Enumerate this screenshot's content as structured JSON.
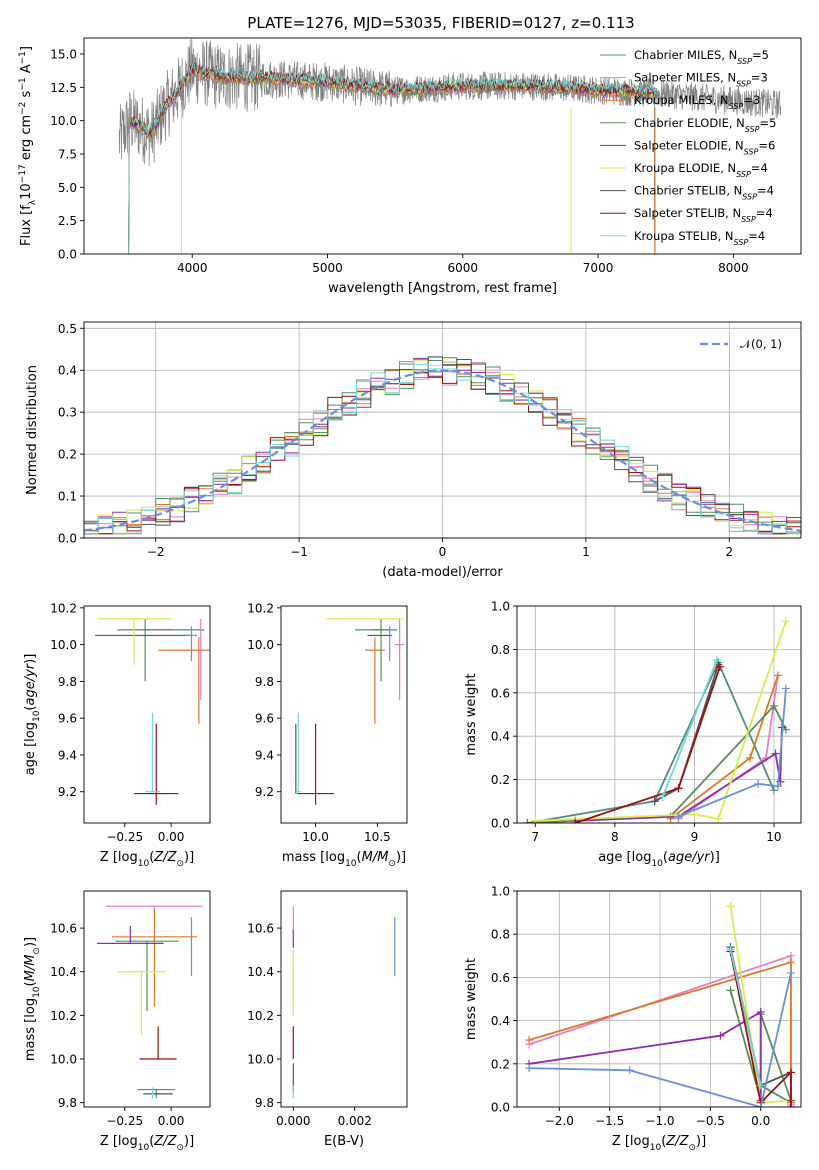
{
  "title": "PLATE=1276, MJD=53035, FIBERID=0127, z=0.113",
  "models": [
    {
      "name": "Chabrier MILES",
      "nssp": "5",
      "color": "#4d8f7a"
    },
    {
      "name": "Salpeter MILES",
      "nssp": "3",
      "color": "#e87fc0"
    },
    {
      "name": "Kroupa MILES",
      "nssp": "3",
      "color": "#e0782a"
    },
    {
      "name": "Chabrier ELODIE",
      "nssp": "5",
      "color": "#5a8a5a"
    },
    {
      "name": "Salpeter ELODIE",
      "nssp": "6",
      "color": "#8e2bb0"
    },
    {
      "name": "Kroupa ELODIE",
      "nssp": "4",
      "color": "#d8ec4a"
    },
    {
      "name": "Chabrier STELIB",
      "nssp": "4",
      "color": "#555555"
    },
    {
      "name": "Salpeter STELIB",
      "nssp": "4",
      "color": "#9b1010"
    },
    {
      "name": "Kroupa STELIB",
      "nssp": "4",
      "color": "#70d8d8"
    }
  ],
  "extra_color": "#6a8ee0",
  "chart_data": [
    {
      "id": "spectrum",
      "type": "line",
      "xlabel": "wavelength [Angstrom, rest frame]",
      "ylabel": "Flux [f_λ 10^-17 erg cm^-2 s^-1 A^-1]",
      "xlim": [
        3200,
        8500
      ],
      "ylim": [
        0,
        16.2
      ],
      "xticks": [
        4000,
        5000,
        6000,
        7000,
        8000
      ],
      "yticks": [
        0.0,
        2.5,
        5.0,
        7.5,
        10.0,
        12.5,
        15.0
      ],
      "observed_range": [
        3460,
        8350
      ],
      "model_range": [
        3530,
        7420
      ],
      "continuum_knots": [
        [
          3460,
          8.5
        ],
        [
          3540,
          10.0
        ],
        [
          3700,
          9.0
        ],
        [
          3800,
          11.0
        ],
        [
          3900,
          12.3
        ],
        [
          4000,
          13.8
        ],
        [
          4200,
          13.3
        ],
        [
          4500,
          13.2
        ],
        [
          4800,
          13.0
        ],
        [
          5000,
          12.9
        ],
        [
          5200,
          12.6
        ],
        [
          5500,
          12.3
        ],
        [
          6000,
          12.6
        ],
        [
          6500,
          12.6
        ],
        [
          7000,
          12.3
        ],
        [
          7500,
          12.0
        ],
        [
          8000,
          11.5
        ],
        [
          8350,
          11.2
        ]
      ],
      "legend_position": "right"
    },
    {
      "id": "residuals",
      "type": "histogram",
      "xlabel": "(data-model)/error",
      "ylabel": "Normed distribution",
      "xlim": [
        -2.5,
        2.5
      ],
      "ylim": [
        0,
        0.515
      ],
      "xticks": [
        -2,
        -1,
        0,
        1,
        2
      ],
      "yticks": [
        0.0,
        0.1,
        0.2,
        0.3,
        0.4,
        0.5
      ],
      "bin_width": 0.1,
      "reference_curve": {
        "label": "𝒩(0, 1)",
        "mean": 0,
        "sigma": 1
      },
      "legend_position": "top-right"
    },
    {
      "id": "age-vs-Z",
      "type": "scatter",
      "xlabel": "Z [log10(Z/Z⊙)]",
      "ylabel": "age [log10(age/yr)]",
      "xlim": [
        -0.47,
        0.21
      ],
      "ylim": [
        9.03,
        10.21
      ],
      "xticks": [
        -0.25,
        0.0
      ],
      "yticks": [
        9.2,
        9.4,
        9.6,
        9.8,
        10.0,
        10.2
      ],
      "points": [
        {
          "model": 0,
          "x": 0.0,
          "y": 10.08,
          "xerr": 0.18,
          "yerr": [
            0.0,
            0.0
          ]
        },
        {
          "model": 1,
          "x": 0.16,
          "y": 10.0,
          "xerr": 0.0,
          "yerr": [
            0.3,
            0.14
          ]
        },
        {
          "model": 2,
          "x": 0.15,
          "y": 9.97,
          "xerr": 0.22,
          "yerr": [
            0.4,
            0.07
          ]
        },
        {
          "model": 3,
          "x": -0.14,
          "y": 10.08,
          "xerr": 0.15,
          "yerr": [
            0.28,
            0.06
          ]
        },
        {
          "model": 4,
          "x": -0.15,
          "y": 10.05,
          "xerr": 0.26,
          "yerr": [
            0.0,
            0.0
          ]
        },
        {
          "model": 5,
          "x": -0.2,
          "y": 10.14,
          "xerr": 0.2,
          "yerr": [
            0.25,
            0.0
          ]
        },
        {
          "model": 6,
          "x": -0.06,
          "y": 9.19,
          "xerr": 0.05,
          "yerr": [
            0.0,
            0.0
          ]
        },
        {
          "model": 7,
          "x": -0.08,
          "y": 9.19,
          "xerr": 0.12,
          "yerr": [
            0.06,
            0.38
          ]
        },
        {
          "model": 8,
          "x": -0.1,
          "y": 9.2,
          "xerr": 0.04,
          "yerr": [
            0.0,
            0.43
          ]
        },
        {
          "extra": true,
          "x": 0.11,
          "y": 10.05,
          "xerr": 0.03,
          "yerr": [
            0.14,
            0.05
          ]
        }
      ]
    },
    {
      "id": "age-vs-mass",
      "type": "scatter",
      "xlabel": "mass [log10(M/M⊙)]",
      "ylabel": "",
      "xlim": [
        9.72,
        10.74
      ],
      "ylim": [
        9.03,
        10.21
      ],
      "xticks": [
        10.0,
        10.5
      ],
      "yticks": [
        9.2,
        9.4,
        9.6,
        9.8,
        10.0,
        10.2
      ],
      "points": [
        {
          "model": 0,
          "x": 10.49,
          "y": 10.08,
          "xerr": 0.17,
          "yerr": [
            0.0,
            0.0
          ]
        },
        {
          "model": 1,
          "x": 10.68,
          "y": 10.0,
          "xerr": 0.04,
          "yerr": [
            0.3,
            0.14
          ]
        },
        {
          "model": 2,
          "x": 10.48,
          "y": 9.97,
          "xerr": 0.08,
          "yerr": [
            0.4,
            0.07
          ]
        },
        {
          "model": 3,
          "x": 10.53,
          "y": 10.08,
          "xerr": 0.08,
          "yerr": [
            0.28,
            0.06
          ]
        },
        {
          "model": 4,
          "x": 10.52,
          "y": 10.05,
          "xerr": 0.1,
          "yerr": [
            0.0,
            0.0
          ]
        },
        {
          "model": 5,
          "x": 10.4,
          "y": 10.14,
          "xerr": 0.31,
          "yerr": [
            0.0,
            0.0
          ]
        },
        {
          "model": 6,
          "x": 9.84,
          "y": 9.19,
          "xerr": 0.0,
          "yerr": [
            0.0,
            0.38
          ]
        },
        {
          "model": 7,
          "x": 10.0,
          "y": 9.19,
          "xerr": 0.15,
          "yerr": [
            0.06,
            0.38
          ]
        },
        {
          "model": 8,
          "x": 9.86,
          "y": 9.2,
          "xerr": 0.02,
          "yerr": [
            0.0,
            0.43
          ]
        },
        {
          "extra": true,
          "x": 10.6,
          "y": 10.05,
          "xerr": 0.0,
          "yerr": [
            0.14,
            0.05
          ]
        }
      ]
    },
    {
      "id": "weight-vs-age",
      "type": "line",
      "xlabel": "age [log10(age/yr)]",
      "ylabel": "mass weight",
      "xlim": [
        6.77,
        10.34
      ],
      "ylim": [
        0,
        1.0
      ],
      "xticks": [
        7,
        8,
        9,
        10
      ],
      "yticks": [
        0.0,
        0.2,
        0.4,
        0.6,
        0.8,
        1.0
      ],
      "series": [
        {
          "model": 0,
          "points": [
            [
              6.9,
              0.0
            ],
            [
              8.5,
              0.1
            ],
            [
              9.3,
              0.74
            ],
            [
              10.0,
              0.15
            ]
          ]
        },
        {
          "model": 1,
          "points": [
            [
              8.8,
              0.02
            ],
            [
              9.9,
              0.3
            ],
            [
              10.05,
              0.68
            ]
          ]
        },
        {
          "model": 2,
          "points": [
            [
              8.7,
              0.02
            ],
            [
              9.7,
              0.3
            ],
            [
              10.05,
              0.68
            ]
          ]
        },
        {
          "model": 3,
          "points": [
            [
              6.9,
              0.0
            ],
            [
              8.7,
              0.03
            ],
            [
              10.0,
              0.54
            ],
            [
              10.15,
              0.43
            ]
          ]
        },
        {
          "model": 4,
          "points": [
            [
              7.5,
              0.01
            ],
            [
              8.8,
              0.03
            ],
            [
              10.02,
              0.32
            ],
            [
              10.08,
              0.19
            ],
            [
              10.1,
              0.44
            ]
          ]
        },
        {
          "model": 5,
          "points": [
            [
              7.0,
              0.01
            ],
            [
              9.0,
              0.04
            ],
            [
              9.3,
              0.02
            ],
            [
              10.15,
              0.93
            ]
          ]
        },
        {
          "model": 6,
          "points": [
            [
              8.5,
              0.1
            ],
            [
              8.8,
              0.16
            ],
            [
              9.3,
              0.73
            ]
          ]
        },
        {
          "model": 7,
          "points": [
            [
              7.5,
              0.0
            ],
            [
              8.8,
              0.16
            ],
            [
              9.32,
              0.72
            ]
          ]
        },
        {
          "model": 8,
          "points": [
            [
              8.6,
              0.12
            ],
            [
              9.28,
              0.75
            ]
          ]
        },
        {
          "extra": true,
          "points": [
            [
              8.8,
              0.03
            ],
            [
              9.8,
              0.18
            ],
            [
              10.05,
              0.17
            ],
            [
              10.15,
              0.62
            ]
          ]
        }
      ]
    },
    {
      "id": "mass-vs-Z",
      "type": "scatter",
      "xlabel": "Z [log10(Z/Z⊙)]",
      "ylabel": "mass [log10(M/M⊙)]",
      "xlim": [
        -0.47,
        0.21
      ],
      "ylim": [
        9.78,
        10.77
      ],
      "xticks": [
        -0.25,
        0.0
      ],
      "yticks": [
        9.8,
        10.0,
        10.2,
        10.4,
        10.6
      ],
      "points": [
        {
          "model": 0,
          "x": -0.08,
          "y": 9.86,
          "xerr": 0.1,
          "yerr": [
            0.04,
            0.0
          ]
        },
        {
          "model": 1,
          "x": -0.09,
          "y": 10.7,
          "xerr": 0.26,
          "yerr": [
            0.04,
            0.0
          ]
        },
        {
          "model": 2,
          "x": -0.09,
          "y": 10.56,
          "xerr": 0.23,
          "yerr": [
            0.32,
            0.13
          ]
        },
        {
          "model": 3,
          "x": -0.13,
          "y": 10.54,
          "xerr": 0.17,
          "yerr": [
            0.32,
            0.0
          ]
        },
        {
          "model": 4,
          "x": -0.22,
          "y": 10.53,
          "xerr": 0.18,
          "yerr": [
            0.0,
            0.08
          ]
        },
        {
          "model": 5,
          "x": -0.16,
          "y": 10.4,
          "xerr": 0.13,
          "yerr": [
            0.29,
            0.0
          ]
        },
        {
          "model": 6,
          "x": -0.07,
          "y": 9.84,
          "xerr": 0.08,
          "yerr": [
            0.0,
            0.0
          ]
        },
        {
          "model": 7,
          "x": -0.07,
          "y": 10.0,
          "xerr": 0.1,
          "yerr": [
            0.0,
            0.15
          ]
        },
        {
          "model": 8,
          "x": -0.1,
          "y": 9.87,
          "xerr": 0.0,
          "yerr": [
            0.05,
            0.0
          ]
        },
        {
          "extra": true,
          "x": 0.11,
          "y": 10.52,
          "xerr": 0.0,
          "yerr": [
            0.14,
            0.13
          ]
        }
      ]
    },
    {
      "id": "mass-vs-ebv",
      "type": "scatter",
      "xlabel": "E(B-V)",
      "ylabel": "",
      "xlim": [
        -0.0004,
        0.0037
      ],
      "ylim": [
        9.78,
        10.77
      ],
      "xticks": [
        0.0,
        0.002
      ],
      "yticks": [
        9.8,
        10.0,
        10.2,
        10.4,
        10.6
      ],
      "points": [
        {
          "model": 1,
          "x": 0.0,
          "y": 10.65,
          "xerr": 0.0,
          "yerr": [
            0.07,
            0.05
          ]
        },
        {
          "model": 4,
          "x": 0.0,
          "y": 10.55,
          "xerr": 0.0,
          "yerr": [
            0.04,
            0.04
          ]
        },
        {
          "model": 5,
          "x": 0.0,
          "y": 10.3,
          "xerr": 0.0,
          "yerr": [
            0.1,
            0.2
          ]
        },
        {
          "model": 7,
          "x": 0.0,
          "y": 10.05,
          "xerr": 0.0,
          "yerr": [
            0.05,
            0.1
          ]
        },
        {
          "model": 6,
          "x": 0.0,
          "y": 9.9,
          "xerr": 0.0,
          "yerr": [
            0.05,
            0.08
          ]
        },
        {
          "model": 8,
          "x": 0.0,
          "y": 9.82,
          "xerr": 0.0,
          "yerr": [
            0.0,
            0.06
          ]
        },
        {
          "extra": true,
          "x": 0.0033,
          "y": 10.52,
          "xerr": 0.0,
          "yerr": [
            0.14,
            0.13
          ]
        }
      ]
    },
    {
      "id": "weight-vs-Z",
      "type": "line",
      "xlabel": "Z [log10(Z/Z⊙)]",
      "ylabel": "mass weight",
      "xlim": [
        -2.42,
        0.4
      ],
      "ylim": [
        0,
        1.0
      ],
      "xticks": [
        -2.0,
        -1.5,
        -1.0,
        -0.5,
        0.0
      ],
      "yticks": [
        0.0,
        0.2,
        0.4,
        0.6,
        0.8,
        1.0
      ],
      "series": [
        {
          "model": 0,
          "points": [
            [
              -0.3,
              0.73
            ],
            [
              0.0,
              0.1
            ],
            [
              0.3,
              0.02
            ]
          ]
        },
        {
          "model": 1,
          "points": [
            [
              -2.3,
              0.29
            ],
            [
              0.3,
              0.7
            ],
            [
              0.3,
              0.01
            ]
          ]
        },
        {
          "model": 2,
          "points": [
            [
              -2.3,
              0.31
            ],
            [
              0.3,
              0.67
            ],
            [
              0.3,
              0.02
            ]
          ]
        },
        {
          "model": 3,
          "points": [
            [
              -0.3,
              0.54
            ],
            [
              0.0,
              0.03
            ],
            [
              0.0,
              0.43
            ],
            [
              0.3,
              0.03
            ]
          ]
        },
        {
          "model": 4,
          "points": [
            [
              -2.3,
              0.2
            ],
            [
              -0.4,
              0.33
            ],
            [
              0.0,
              0.44
            ],
            [
              0.0,
              0.03
            ]
          ]
        },
        {
          "model": 5,
          "points": [
            [
              -0.3,
              0.93
            ],
            [
              0.0,
              0.02
            ],
            [
              0.3,
              0.03
            ]
          ]
        },
        {
          "model": 6,
          "points": [
            [
              -0.3,
              0.74
            ],
            [
              0.0,
              0.1
            ],
            [
              0.3,
              0.16
            ],
            [
              0.3,
              0.03
            ]
          ]
        },
        {
          "model": 7,
          "points": [
            [
              -0.3,
              0.72
            ],
            [
              0.0,
              0.02
            ],
            [
              0.3,
              0.16
            ],
            [
              0.3,
              0.0
            ]
          ]
        },
        {
          "model": 8,
          "points": [
            [
              -0.3,
              0.73
            ],
            [
              0.0,
              0.1
            ]
          ]
        },
        {
          "extra": true,
          "points": [
            [
              -2.3,
              0.18
            ],
            [
              -1.3,
              0.17
            ],
            [
              0.0,
              0.0
            ],
            [
              0.3,
              0.62
            ]
          ]
        }
      ]
    }
  ]
}
